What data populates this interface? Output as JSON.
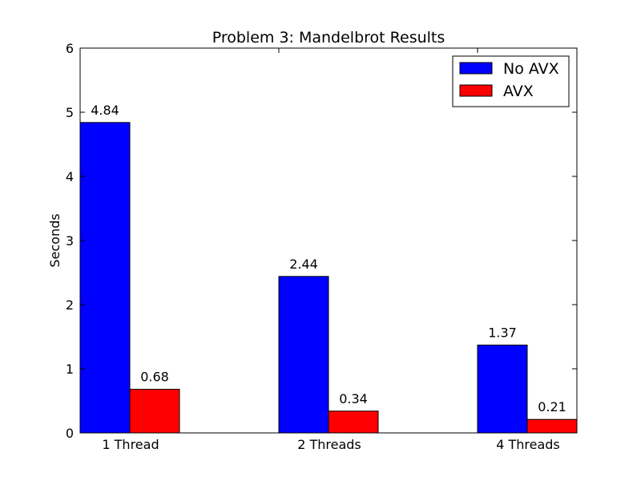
{
  "chart_data": {
    "type": "bar",
    "title": "Problem 3: Mandelbrot Results",
    "xlabel": "",
    "ylabel": "Seconds",
    "categories": [
      "1 Thread",
      "2 Threads",
      "4 Threads"
    ],
    "series": [
      {
        "name": "No AVX",
        "color": "#0000ff",
        "values": [
          4.84,
          2.44,
          1.37
        ],
        "labels": [
          "4.84",
          "2.44",
          "1.37"
        ]
      },
      {
        "name": "AVX",
        "color": "#ff0000",
        "values": [
          0.68,
          0.34,
          0.21
        ],
        "labels": [
          "0.68",
          "0.34",
          "0.21"
        ]
      }
    ],
    "ylim": [
      0,
      6
    ],
    "yticks": [
      0,
      1,
      2,
      3,
      4,
      5,
      6
    ],
    "ytick_labels": [
      "0",
      "1",
      "2",
      "3",
      "4",
      "5",
      "6"
    ],
    "grid": false,
    "legend_position": "top-right"
  }
}
